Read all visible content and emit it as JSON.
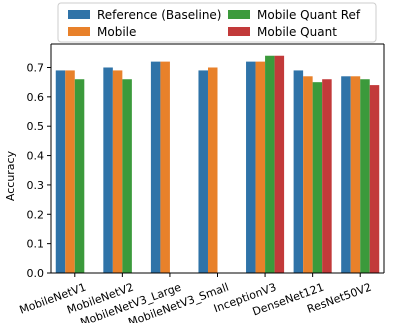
{
  "chart_data": {
    "type": "bar",
    "ylabel": "Accuracy",
    "xlabel": "",
    "ylim": [
      0,
      0.78
    ],
    "yticks": [
      "0.0",
      "0.1",
      "0.2",
      "0.3",
      "0.4",
      "0.5",
      "0.6",
      "0.7"
    ],
    "grid": false,
    "legend_position": "top",
    "categories": [
      "MobileNetV1",
      "MobileNetV2",
      "MobileNetV3_Large",
      "MobileNetV3_Small",
      "InceptionV3",
      "DenseNet121",
      "ResNet50V2"
    ],
    "series": [
      {
        "name": "Reference (Baseline)",
        "color": "#2f73a8",
        "values": [
          0.69,
          0.7,
          0.72,
          0.69,
          0.72,
          0.69,
          0.67
        ]
      },
      {
        "name": "Mobile",
        "color": "#e8812a",
        "values": [
          0.69,
          0.69,
          0.72,
          0.7,
          0.72,
          0.67,
          0.67
        ]
      },
      {
        "name": "Mobile Quant Ref",
        "color": "#3b9a3b",
        "values": [
          0.66,
          0.66,
          null,
          null,
          0.74,
          0.65,
          0.66
        ]
      },
      {
        "name": "Mobile Quant",
        "color": "#c23a3a",
        "values": [
          null,
          null,
          null,
          null,
          0.74,
          0.66,
          0.64
        ]
      }
    ]
  }
}
